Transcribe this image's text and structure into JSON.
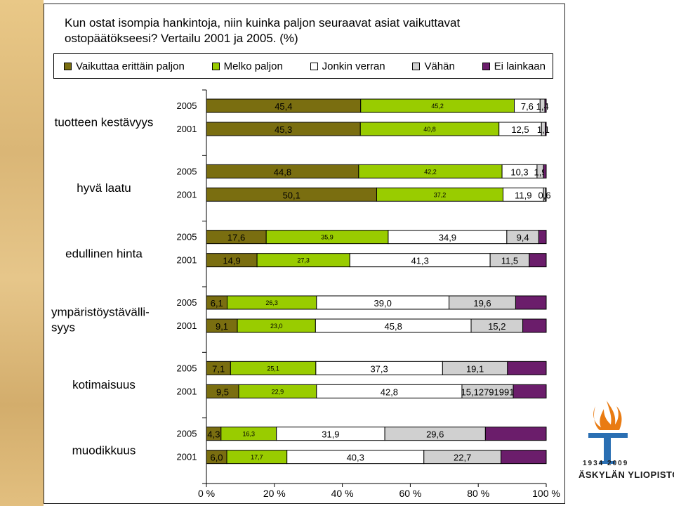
{
  "title": "Kun ostat isompia hankintoja, niin kuinka paljon seuraavat asiat vaikuttavat ostopäätökseesi? Vertailu 2001 ja 2005. (%)",
  "colors": {
    "series": [
      "#7a6e10",
      "#99cc00",
      "#ffffff",
      "#d0d0d0",
      "#6b1d6b"
    ]
  },
  "logo": {
    "years": "1934 2009",
    "name": "ÄSKYLÄN YLIOPISTO"
  },
  "chart_data": {
    "type": "bar",
    "orientation": "horizontal",
    "stacked": "percent",
    "legend_position": "top",
    "series_names": [
      "Vaikuttaa erittäin paljon",
      "Melko paljon",
      "Jonkin verran",
      "Vähän",
      "Ei lainkaan"
    ],
    "xaxis_ticks": [
      "0 %",
      "20 %",
      "40 %",
      "60 %",
      "80 %",
      "100 %"
    ],
    "xlim": [
      0,
      100
    ],
    "groups": [
      {
        "label": "tuotteen kestävyys",
        "rows": [
          {
            "year": "2005",
            "values": [
              45.4,
              45.2,
              7.6,
              1.4,
              0.4
            ],
            "labels": [
              "45,4",
              "45,2",
              "7,6",
              "1,4",
              ""
            ]
          },
          {
            "year": "2001",
            "values": [
              45.3,
              40.8,
              12.5,
              1.1,
              0.3
            ],
            "labels": [
              "45,3",
              "40,8",
              "12,5",
              "1,1",
              ""
            ]
          }
        ]
      },
      {
        "label": "hyvä laatu",
        "rows": [
          {
            "year": "2005",
            "values": [
              44.8,
              42.2,
              10.3,
              1.9,
              0.8
            ],
            "labels": [
              "44,8",
              "42,2",
              "10,3",
              "1,9",
              ""
            ]
          },
          {
            "year": "2001",
            "values": [
              50.1,
              37.2,
              11.9,
              0.6,
              0.2
            ],
            "labels": [
              "50,1",
              "37,2",
              "11,9",
              "0,6",
              ""
            ]
          }
        ]
      },
      {
        "label": "edullinen hinta",
        "rows": [
          {
            "year": "2005",
            "values": [
              17.6,
              35.9,
              34.9,
              9.4,
              2.2
            ],
            "labels": [
              "17,6",
              "35,9",
              "34,9",
              "9,4",
              ""
            ]
          },
          {
            "year": "2001",
            "values": [
              14.9,
              27.3,
              41.3,
              11.5,
              5.0
            ],
            "labels": [
              "14,9",
              "27,3",
              "41,3",
              "11,5",
              ""
            ]
          }
        ]
      },
      {
        "label": "ympäristöystävälli-syys",
        "rows": [
          {
            "year": "2005",
            "values": [
              6.1,
              26.3,
              39.0,
              19.6,
              9.0
            ],
            "labels": [
              "6,1",
              "26,3",
              "39,0",
              "19,6",
              ""
            ]
          },
          {
            "year": "2001",
            "values": [
              9.1,
              23.0,
              45.8,
              15.2,
              6.9
            ],
            "labels": [
              "9,1",
              "23,0",
              "45,8",
              "15,2",
              ""
            ]
          }
        ]
      },
      {
        "label": "kotimaisuus",
        "rows": [
          {
            "year": "2005",
            "values": [
              7.1,
              25.1,
              37.3,
              19.1,
              11.4
            ],
            "labels": [
              "7,1",
              "25,1",
              "37,3",
              "19,1",
              ""
            ]
          },
          {
            "year": "2001",
            "values": [
              9.5,
              22.9,
              42.8,
              15.1,
              9.7
            ],
            "labels": [
              "9,5",
              "22,9",
              "42,8",
              "15,12791991",
              ""
            ]
          }
        ]
      },
      {
        "label": "muodikkuus",
        "rows": [
          {
            "year": "2005",
            "values": [
              4.3,
              16.3,
              31.9,
              29.6,
              17.9
            ],
            "labels": [
              "4,3",
              "16,3",
              "31,9",
              "29,6",
              ""
            ]
          },
          {
            "year": "2001",
            "values": [
              6.0,
              17.7,
              40.3,
              22.7,
              13.3
            ],
            "labels": [
              "6,0",
              "17,7",
              "40,3",
              "22,7",
              ""
            ]
          }
        ]
      }
    ]
  }
}
